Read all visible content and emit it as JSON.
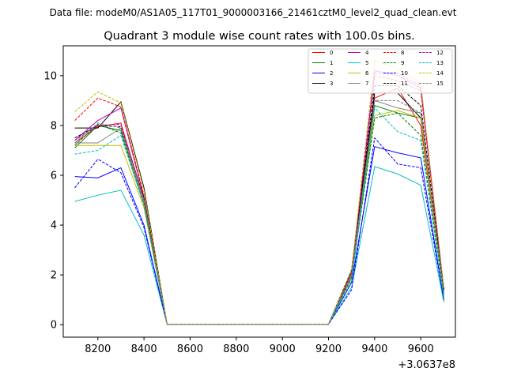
{
  "chart_data": {
    "type": "line",
    "suptitle": "Data file: modeM0/AS1A05_117T01_9000003166_21461cztM0_level2_quad_clean.evt",
    "title": "Quadrant 3 module wise count rates with 100.0s bins.",
    "xlabel": "",
    "ylabel": "",
    "x_offset_label": "+3.0637e8",
    "xlim": [
      8050,
      9750
    ],
    "ylim": [
      -0.5,
      11.2
    ],
    "xticks": [
      8200,
      8400,
      8600,
      8800,
      9000,
      9200,
      9400,
      9600
    ],
    "xtick_labels": [
      "8200",
      "8400",
      "8600",
      "8800",
      "9000",
      "9200",
      "9400",
      "9600"
    ],
    "yticks": [
      0,
      2,
      4,
      6,
      8,
      10
    ],
    "ytick_labels": [
      "0",
      "2",
      "4",
      "6",
      "8",
      "10"
    ],
    "legend_position": "top-right",
    "x": [
      8100,
      8200,
      8300,
      8400,
      8500,
      8600,
      8700,
      8800,
      8900,
      9000,
      9100,
      9200,
      9300,
      9400,
      9500,
      9600,
      9700
    ],
    "series": [
      {
        "name": "0",
        "color": "#ff0000",
        "dash": "solid",
        "values": [
          7.3,
          7.95,
          8.1,
          5.0,
          0.02,
          0.02,
          0.02,
          0.02,
          0.02,
          0.02,
          0.02,
          0.02,
          2.0,
          9.1,
          9.5,
          8.0,
          1.3
        ]
      },
      {
        "name": "1",
        "color": "#008000",
        "dash": "solid",
        "values": [
          7.1,
          8.0,
          7.8,
          4.9,
          0.02,
          0.02,
          0.02,
          0.02,
          0.02,
          0.02,
          0.02,
          0.02,
          1.9,
          8.8,
          8.5,
          8.3,
          1.2
        ]
      },
      {
        "name": "2",
        "color": "#0000ff",
        "dash": "solid",
        "values": [
          5.95,
          5.9,
          6.3,
          4.0,
          0.02,
          0.02,
          0.02,
          0.02,
          0.02,
          0.02,
          0.02,
          0.02,
          1.7,
          7.15,
          6.9,
          6.7,
          1.0
        ]
      },
      {
        "name": "3",
        "color": "#000000",
        "dash": "solid",
        "values": [
          7.9,
          7.9,
          8.95,
          5.5,
          0.02,
          0.02,
          0.02,
          0.02,
          0.02,
          0.02,
          0.02,
          0.02,
          2.2,
          9.3,
          9.3,
          8.3,
          1.5
        ]
      },
      {
        "name": "4",
        "color": "#c000c0",
        "dash": "solid",
        "values": [
          7.4,
          8.2,
          8.7,
          5.1,
          0.02,
          0.02,
          0.02,
          0.02,
          0.02,
          0.02,
          0.02,
          0.02,
          2.0,
          10.2,
          10.0,
          9.5,
          1.4
        ]
      },
      {
        "name": "5",
        "color": "#00bfbf",
        "dash": "solid",
        "values": [
          4.95,
          5.2,
          5.4,
          3.6,
          0.02,
          0.02,
          0.02,
          0.02,
          0.02,
          0.02,
          0.02,
          0.02,
          1.5,
          6.35,
          6.05,
          5.6,
          0.9
        ]
      },
      {
        "name": "6",
        "color": "#bfbf00",
        "dash": "solid",
        "values": [
          7.2,
          7.2,
          7.2,
          4.7,
          0.02,
          0.02,
          0.02,
          0.02,
          0.02,
          0.02,
          0.02,
          0.02,
          1.9,
          8.4,
          8.6,
          8.3,
          1.2
        ]
      },
      {
        "name": "7",
        "color": "#808080",
        "dash": "solid",
        "values": [
          7.3,
          7.3,
          7.9,
          4.9,
          0.02,
          0.02,
          0.02,
          0.02,
          0.02,
          0.02,
          0.02,
          0.02,
          2.0,
          9.0,
          8.7,
          8.5,
          1.3
        ]
      },
      {
        "name": "8",
        "color": "#ff0000",
        "dash": "dashed",
        "values": [
          8.2,
          9.1,
          8.75,
          5.2,
          0.02,
          0.02,
          0.02,
          0.02,
          0.02,
          0.02,
          0.02,
          0.02,
          2.1,
          10.0,
          9.8,
          9.4,
          1.4
        ]
      },
      {
        "name": "9",
        "color": "#008000",
        "dash": "dashed",
        "values": [
          7.2,
          8.05,
          7.7,
          4.8,
          0.02,
          0.02,
          0.02,
          0.02,
          0.02,
          0.02,
          0.02,
          0.02,
          1.9,
          8.3,
          8.5,
          7.6,
          1.2
        ]
      },
      {
        "name": "10",
        "color": "#0000ff",
        "dash": "dashed",
        "values": [
          5.5,
          6.65,
          6.1,
          3.9,
          0.02,
          0.02,
          0.02,
          0.02,
          0.02,
          0.02,
          0.02,
          0.02,
          1.4,
          7.5,
          6.45,
          6.3,
          1.0
        ]
      },
      {
        "name": "11",
        "color": "#000000",
        "dash": "dashed",
        "values": [
          7.5,
          8.0,
          7.95,
          5.1,
          0.02,
          0.02,
          0.02,
          0.02,
          0.02,
          0.02,
          0.02,
          0.02,
          2.1,
          9.6,
          9.6,
          8.8,
          1.4
        ]
      },
      {
        "name": "12",
        "color": "#c000c0",
        "dash": "dashed",
        "values": [
          7.4,
          8.0,
          8.05,
          5.0,
          0.02,
          0.02,
          0.02,
          0.02,
          0.02,
          0.02,
          0.02,
          0.02,
          2.1,
          10.1,
          10.1,
          9.6,
          1.4
        ]
      },
      {
        "name": "13",
        "color": "#00bfbf",
        "dash": "dashed",
        "values": [
          6.85,
          7.0,
          7.6,
          4.8,
          0.02,
          0.02,
          0.02,
          0.02,
          0.02,
          0.02,
          0.02,
          0.02,
          1.8,
          8.7,
          7.75,
          7.4,
          1.1
        ]
      },
      {
        "name": "14",
        "color": "#bfbf00",
        "dash": "dashed",
        "values": [
          8.55,
          9.35,
          8.9,
          5.4,
          0.02,
          0.02,
          0.02,
          0.02,
          0.02,
          0.02,
          0.02,
          0.02,
          2.2,
          10.6,
          10.3,
          9.7,
          1.5
        ]
      },
      {
        "name": "15",
        "color": "#808080",
        "dash": "dashed",
        "values": [
          7.3,
          8.1,
          7.9,
          5.0,
          0.02,
          0.02,
          0.02,
          0.02,
          0.02,
          0.02,
          0.02,
          0.02,
          2.0,
          9.0,
          9.0,
          8.5,
          1.3
        ]
      }
    ]
  }
}
